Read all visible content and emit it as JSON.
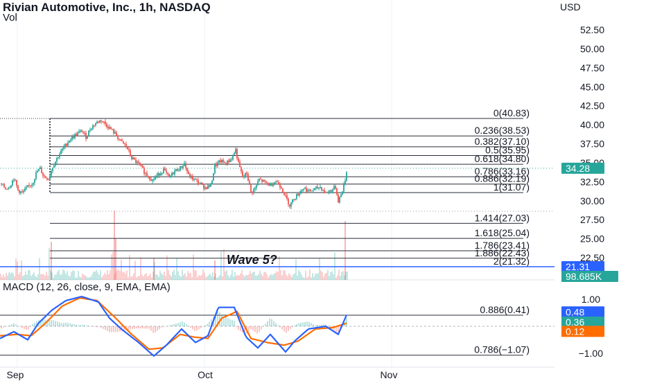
{
  "header": {
    "title": "Rivian Automotive, Inc., 1h, NASDAQ",
    "volume_label": "Vol",
    "macd_title": "MACD (12, 26, close, 9, EMA, EMA)",
    "currency": "USD"
  },
  "annotation": {
    "text": "Wave 5?"
  },
  "colors": {
    "up": "#26a69a",
    "down": "#ef5350",
    "macd_line": "#2962ff",
    "signal_line": "#ff6d00",
    "fib_line": "#131722",
    "horizontal_line": "#2962ff",
    "price_badge": "#26a69a",
    "volume_badge": "#26a69a",
    "level_badge": "#2962ff",
    "histogram_badge": "#26a69a",
    "signal_badge": "#ff6d00"
  },
  "price_axis": {
    "ticks": [
      "52.50",
      "50.00",
      "47.50",
      "45.00",
      "42.50",
      "40.00",
      "37.50",
      "35.00",
      "32.50",
      "30.00",
      "27.50",
      "25.00",
      "22.50"
    ],
    "range": [
      21.0,
      55.0
    ]
  },
  "macd_axis": {
    "ticks": [
      "1.00",
      "−1.00"
    ],
    "range": [
      -1.4,
      1.25
    ]
  },
  "time_axis": {
    "labels": [
      "Sep",
      "Oct",
      "Nov"
    ]
  },
  "badges": {
    "last_price": "34.28",
    "horizontal_level": "21.31",
    "volume": "98.685K",
    "macd": "0.48",
    "histogram": "0.36",
    "signal": "0.12"
  },
  "fib_levels": [
    {
      "label": "0(40.83)",
      "price": 40.83
    },
    {
      "label": "0.236(38.53)",
      "price": 38.53
    },
    {
      "label": "0.382(37.10)",
      "price": 37.1
    },
    {
      "label": "0.5(35.95)",
      "price": 35.95
    },
    {
      "label": "0.618(34.80)",
      "price": 34.8
    },
    {
      "label": "0.786(33.16)",
      "price": 33.16
    },
    {
      "label": "0.886(32.19)",
      "price": 32.19
    },
    {
      "label": "1(31.07)",
      "price": 31.07
    },
    {
      "label": "1.414(27.03)",
      "price": 27.03
    },
    {
      "label": "1.618(25.04)",
      "price": 25.04
    },
    {
      "label": "1.786(23.41)",
      "price": 23.41
    },
    {
      "label": "1.886(22.43)",
      "price": 22.43
    },
    {
      "label": "2(21.32)",
      "price": 21.32
    }
  ],
  "macd_fib_levels": [
    {
      "label": "0.886(0.41)",
      "value": 0.41
    },
    {
      "label": "0.786(−1.07)",
      "value": -1.07
    }
  ],
  "chart_data": {
    "type": "candlestick",
    "title": "Rivian Automotive, Inc., 1h, NASDAQ",
    "currency": "USD",
    "price_path": [
      {
        "x": 0,
        "price": 32.3
      },
      {
        "x": 8,
        "price": 31.6
      },
      {
        "x": 14,
        "price": 31.9
      },
      {
        "x": 20,
        "price": 33.0
      },
      {
        "x": 26,
        "price": 31.4
      },
      {
        "x": 32,
        "price": 31.0
      },
      {
        "x": 40,
        "price": 31.8
      },
      {
        "x": 47,
        "price": 32.3
      },
      {
        "x": 53,
        "price": 33.8
      },
      {
        "x": 58,
        "price": 34.2
      },
      {
        "x": 63,
        "price": 33.2
      },
      {
        "x": 70,
        "price": 32.9
      },
      {
        "x": 76,
        "price": 34.5
      },
      {
        "x": 84,
        "price": 35.9
      },
      {
        "x": 92,
        "price": 37.0
      },
      {
        "x": 100,
        "price": 38.0
      },
      {
        "x": 108,
        "price": 38.6
      },
      {
        "x": 118,
        "price": 39.2
      },
      {
        "x": 124,
        "price": 38.4
      },
      {
        "x": 131,
        "price": 39.6
      },
      {
        "x": 138,
        "price": 40.2
      },
      {
        "x": 146,
        "price": 40.6
      },
      {
        "x": 152,
        "price": 40.1
      },
      {
        "x": 160,
        "price": 39.4
      },
      {
        "x": 168,
        "price": 38.6
      },
      {
        "x": 174,
        "price": 37.8
      },
      {
        "x": 182,
        "price": 37.2
      },
      {
        "x": 190,
        "price": 35.6
      },
      {
        "x": 200,
        "price": 34.8
      },
      {
        "x": 210,
        "price": 33.6
      },
      {
        "x": 220,
        "price": 32.7
      },
      {
        "x": 228,
        "price": 33.4
      },
      {
        "x": 236,
        "price": 34.1
      },
      {
        "x": 244,
        "price": 33.0
      },
      {
        "x": 252,
        "price": 33.9
      },
      {
        "x": 260,
        "price": 34.3
      },
      {
        "x": 266,
        "price": 34.9
      },
      {
        "x": 272,
        "price": 33.3
      },
      {
        "x": 280,
        "price": 32.8
      },
      {
        "x": 288,
        "price": 32.3
      },
      {
        "x": 296,
        "price": 31.7
      },
      {
        "x": 304,
        "price": 32.0
      },
      {
        "x": 310,
        "price": 34.6
      },
      {
        "x": 318,
        "price": 35.2
      },
      {
        "x": 326,
        "price": 34.9
      },
      {
        "x": 334,
        "price": 35.6
      },
      {
        "x": 340,
        "price": 36.7
      },
      {
        "x": 344,
        "price": 34.9
      },
      {
        "x": 350,
        "price": 33.1
      },
      {
        "x": 356,
        "price": 33.6
      },
      {
        "x": 362,
        "price": 31.1
      },
      {
        "x": 368,
        "price": 31.6
      },
      {
        "x": 374,
        "price": 32.8
      },
      {
        "x": 382,
        "price": 32.4
      },
      {
        "x": 390,
        "price": 32.1
      },
      {
        "x": 398,
        "price": 32.6
      },
      {
        "x": 406,
        "price": 31.8
      },
      {
        "x": 412,
        "price": 30.5
      },
      {
        "x": 418,
        "price": 29.4
      },
      {
        "x": 424,
        "price": 30.3
      },
      {
        "x": 430,
        "price": 30.9
      },
      {
        "x": 438,
        "price": 31.7
      },
      {
        "x": 446,
        "price": 31.2
      },
      {
        "x": 454,
        "price": 31.5
      },
      {
        "x": 462,
        "price": 31.8
      },
      {
        "x": 470,
        "price": 31.0
      },
      {
        "x": 478,
        "price": 31.4
      },
      {
        "x": 484,
        "price": 31.8
      },
      {
        "x": 488,
        "price": 30.0
      },
      {
        "x": 492,
        "price": 30.8
      },
      {
        "x": 497,
        "price": 32.3
      },
      {
        "x": 501,
        "price": 34.28
      }
    ],
    "macd_path": [
      {
        "x": 0,
        "macd": -0.45
      },
      {
        "x": 20,
        "macd": -0.2
      },
      {
        "x": 40,
        "macd": -0.5
      },
      {
        "x": 55,
        "macd": 0.1
      },
      {
        "x": 75,
        "macd": 0.6
      },
      {
        "x": 95,
        "macd": 0.95
      },
      {
        "x": 118,
        "macd": 1.1
      },
      {
        "x": 142,
        "macd": 0.9
      },
      {
        "x": 158,
        "macd": 0.3
      },
      {
        "x": 175,
        "macd": -0.1
      },
      {
        "x": 200,
        "macd": -0.6
      },
      {
        "x": 222,
        "macd": -1.1
      },
      {
        "x": 240,
        "macd": -0.7
      },
      {
        "x": 262,
        "macd": -0.1
      },
      {
        "x": 282,
        "macd": -0.6
      },
      {
        "x": 300,
        "macd": -0.35
      },
      {
        "x": 315,
        "macd": 0.7
      },
      {
        "x": 338,
        "macd": 0.7
      },
      {
        "x": 355,
        "macd": -0.4
      },
      {
        "x": 372,
        "macd": -0.8
      },
      {
        "x": 390,
        "macd": -0.3
      },
      {
        "x": 412,
        "macd": -0.95
      },
      {
        "x": 425,
        "macd": -0.55
      },
      {
        "x": 445,
        "macd": -0.1
      },
      {
        "x": 470,
        "macd": 0.0
      },
      {
        "x": 488,
        "macd": -0.3
      },
      {
        "x": 501,
        "macd": 0.48
      }
    ],
    "signal_path": [
      {
        "x": 0,
        "signal": -0.35
      },
      {
        "x": 25,
        "signal": -0.3
      },
      {
        "x": 45,
        "signal": -0.35
      },
      {
        "x": 65,
        "signal": 0.1
      },
      {
        "x": 90,
        "signal": 0.75
      },
      {
        "x": 115,
        "signal": 1.05
      },
      {
        "x": 140,
        "signal": 0.95
      },
      {
        "x": 165,
        "signal": 0.35
      },
      {
        "x": 190,
        "signal": -0.3
      },
      {
        "x": 215,
        "signal": -0.85
      },
      {
        "x": 235,
        "signal": -0.8
      },
      {
        "x": 260,
        "signal": -0.3
      },
      {
        "x": 280,
        "signal": -0.4
      },
      {
        "x": 300,
        "signal": -0.45
      },
      {
        "x": 320,
        "signal": 0.3
      },
      {
        "x": 342,
        "signal": 0.55
      },
      {
        "x": 362,
        "signal": -0.45
      },
      {
        "x": 385,
        "signal": -0.6
      },
      {
        "x": 410,
        "signal": -0.7
      },
      {
        "x": 430,
        "signal": -0.55
      },
      {
        "x": 455,
        "signal": -0.1
      },
      {
        "x": 480,
        "signal": -0.05
      },
      {
        "x": 501,
        "signal": 0.12
      }
    ],
    "volume_spikes": [
      {
        "x": 74,
        "level": 0.55
      },
      {
        "x": 165,
        "level": 1.0
      },
      {
        "x": 167,
        "level": 0.6
      },
      {
        "x": 222,
        "level": 0.32
      },
      {
        "x": 310,
        "level": 0.28
      },
      {
        "x": 498,
        "level": 0.85
      }
    ],
    "ylim": [
      21.0,
      55.0
    ],
    "macd_ylim": [
      -1.4,
      1.25
    ]
  }
}
